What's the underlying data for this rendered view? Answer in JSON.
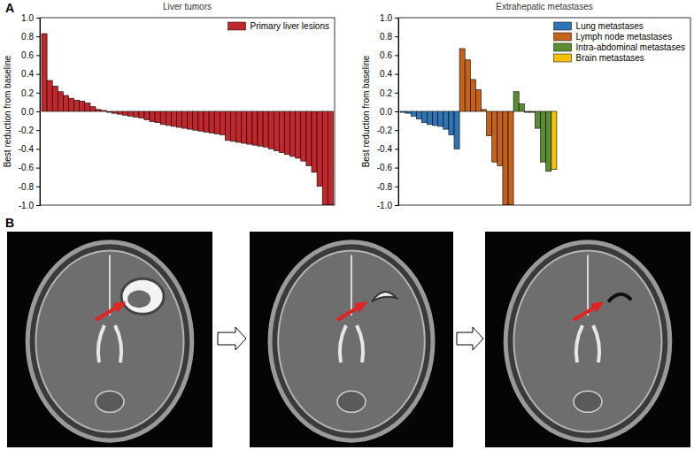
{
  "figure": {
    "panel_labels": [
      "A",
      "B"
    ]
  },
  "chart_data": [
    {
      "type": "bar",
      "title": "Liver tumors",
      "y_label": "Best reduction from baseline",
      "series": [
        {
          "name": "Primary liver lesions",
          "color": "#c1272d",
          "values": [
            0.83,
            0.33,
            0.27,
            0.21,
            0.17,
            0.14,
            0.12,
            0.11,
            0.09,
            0.05,
            0.02,
            0.01,
            -0.01,
            -0.02,
            -0.03,
            -0.04,
            -0.05,
            -0.06,
            -0.07,
            -0.09,
            -0.11,
            -0.12,
            -0.14,
            -0.15,
            -0.16,
            -0.17,
            -0.18,
            -0.19,
            -0.2,
            -0.21,
            -0.22,
            -0.23,
            -0.24,
            -0.25,
            -0.31,
            -0.32,
            -0.33,
            -0.34,
            -0.35,
            -0.36,
            -0.37,
            -0.38,
            -0.4,
            -0.42,
            -0.44,
            -0.46,
            -0.48,
            -0.5,
            -0.53,
            -0.58,
            -0.65,
            -0.8,
            -1.0,
            -1.0
          ]
        }
      ],
      "ylim": [
        -1.0,
        1.0
      ],
      "yticks": [
        {
          "value": -1.0,
          "label": "-1.0"
        },
        {
          "value": -0.8,
          "label": "-0.8"
        },
        {
          "value": -0.6,
          "label": "-0.6"
        },
        {
          "value": -0.4,
          "label": "-0.4"
        },
        {
          "value": -0.2,
          "label": "-0.2"
        },
        {
          "value": 0.0,
          "label": "0.0"
        },
        {
          "value": 0.2,
          "label": "0.2"
        },
        {
          "value": 0.4,
          "label": "0.4"
        },
        {
          "value": 0.6,
          "label": "0.6"
        },
        {
          "value": 0.8,
          "label": "0.8"
        },
        {
          "value": 1.0,
          "label": "1.0"
        }
      ],
      "legend": "upper right",
      "grid": false,
      "tick_labels": "y"
    },
    {
      "type": "bar",
      "title": "Extrahepatic metastases",
      "y_label": "Best reduction from baseline",
      "series": [
        {
          "name": "Lung metastases",
          "color": "#2e75b6",
          "values": [
            -0.01,
            -0.02,
            -0.05,
            -0.08,
            -0.12,
            -0.14,
            -0.15,
            -0.16,
            -0.19,
            -0.25,
            -0.4
          ]
        },
        {
          "name": "Lymph node metastases",
          "color": "#c5621c",
          "values": [
            0.67,
            0.55,
            0.34,
            0.23,
            0.02,
            -0.26,
            -0.54,
            -0.58,
            -1.0,
            -1.0
          ]
        },
        {
          "name": "Intra-abdominal metastases",
          "color": "#5b8c32",
          "values": [
            0.21,
            0.08,
            -0.01,
            -0.01,
            -0.18,
            -0.54,
            -0.64
          ]
        },
        {
          "name": "Brain metastases",
          "color": "#f6c000",
          "values": [
            -0.62
          ]
        }
      ],
      "ylim": [
        -1.0,
        1.0
      ],
      "yticks": [
        {
          "value": -1.0,
          "label": "-1.0"
        },
        {
          "value": -0.8,
          "label": "-0.8"
        },
        {
          "value": -0.6,
          "label": "-0.6"
        },
        {
          "value": -0.4,
          "label": "-0.4"
        },
        {
          "value": -0.2,
          "label": "-0.2"
        },
        {
          "value": 0.0,
          "label": "0.0"
        },
        {
          "value": 0.2,
          "label": "0.2"
        },
        {
          "value": 0.4,
          "label": "0.4"
        },
        {
          "value": 0.6,
          "label": "0.6"
        },
        {
          "value": 0.8,
          "label": "0.8"
        },
        {
          "value": 1.0,
          "label": "1.0"
        }
      ],
      "legend": "upper right",
      "grid": false,
      "tick_labels": "y"
    }
  ]
}
